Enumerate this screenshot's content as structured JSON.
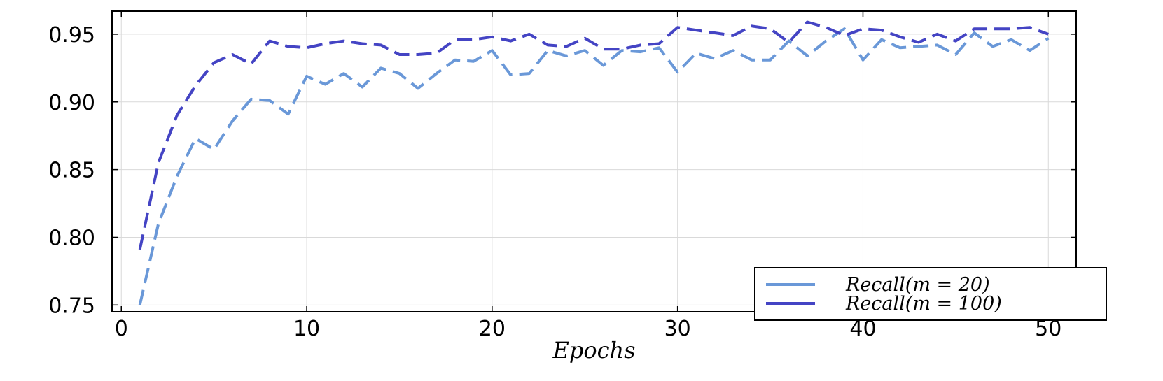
{
  "chart_data": {
    "type": "line",
    "title": "",
    "xlabel": "Epochs",
    "ylabel": "",
    "xlim": [
      -0.5,
      51.5
    ],
    "ylim": [
      0.745,
      0.967
    ],
    "xticks": [
      0,
      10,
      20,
      30,
      40,
      50
    ],
    "xtick_labels": [
      "0",
      "10",
      "20",
      "30",
      "40",
      "50"
    ],
    "yticks": [
      0.75,
      0.8,
      0.85,
      0.9,
      0.95
    ],
    "ytick_labels": [
      "0.75",
      "0.80",
      "0.85",
      "0.90",
      "0.95"
    ],
    "grid": true,
    "legend_position": "bottom-right",
    "x": [
      1,
      2,
      3,
      4,
      5,
      6,
      7,
      8,
      9,
      10,
      11,
      12,
      13,
      14,
      15,
      16,
      17,
      18,
      19,
      20,
      21,
      22,
      23,
      24,
      25,
      26,
      27,
      28,
      29,
      30,
      31,
      32,
      33,
      34,
      35,
      36,
      37,
      38,
      39,
      40,
      41,
      42,
      43,
      44,
      45,
      46,
      47,
      48,
      49,
      50
    ],
    "series": [
      {
        "name": "Recall(m = 20)",
        "color": "#6a98d8",
        "dash": "dashed",
        "values": [
          0.75,
          0.81,
          0.845,
          0.873,
          0.865,
          0.886,
          0.902,
          0.901,
          0.891,
          0.919,
          0.913,
          0.921,
          0.911,
          0.925,
          0.921,
          0.91,
          0.921,
          0.931,
          0.93,
          0.938,
          0.92,
          0.921,
          0.938,
          0.934,
          0.938,
          0.927,
          0.938,
          0.937,
          0.94,
          0.922,
          0.936,
          0.932,
          0.938,
          0.931,
          0.931,
          0.945,
          0.934,
          0.945,
          0.954,
          0.931,
          0.946,
          0.94,
          0.941,
          0.942,
          0.935,
          0.951,
          0.941,
          0.946,
          0.938,
          0.947
        ]
      },
      {
        "name": "Recall(m = 100)",
        "color": "#4444c4",
        "dash": "dashed",
        "values": [
          0.791,
          0.855,
          0.89,
          0.912,
          0.929,
          0.935,
          0.928,
          0.945,
          0.941,
          0.94,
          0.943,
          0.945,
          0.943,
          0.942,
          0.935,
          0.935,
          0.936,
          0.946,
          0.946,
          0.948,
          0.945,
          0.95,
          0.942,
          0.941,
          0.947,
          0.939,
          0.939,
          0.942,
          0.943,
          0.955,
          0.953,
          0.951,
          0.949,
          0.956,
          0.954,
          0.944,
          0.959,
          0.955,
          0.949,
          0.954,
          0.953,
          0.948,
          0.944,
          0.95,
          0.945,
          0.954,
          0.954,
          0.954,
          0.955,
          0.95
        ]
      }
    ]
  }
}
